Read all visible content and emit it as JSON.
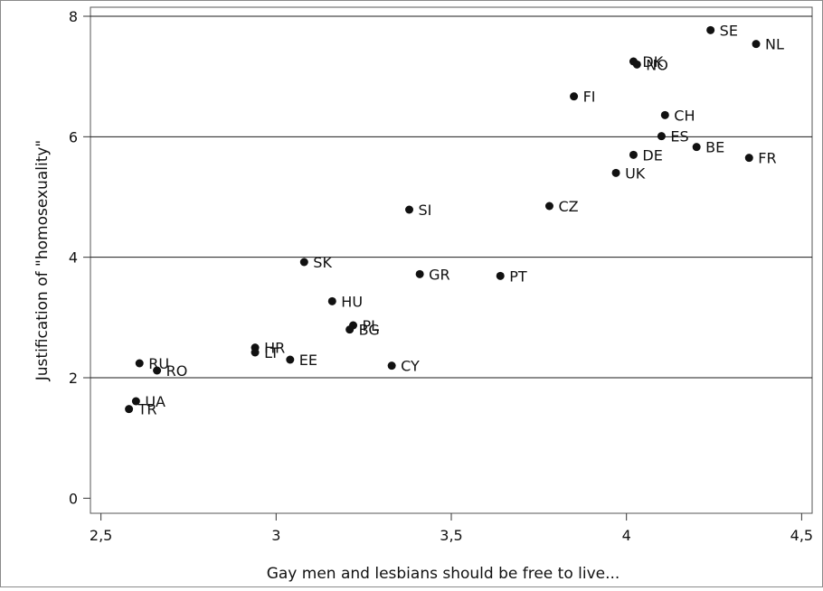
{
  "chart_data": {
    "type": "scatter",
    "xlabel": "Gay men and lesbians should be free to live...",
    "ylabel": "Justification of \"homosexuality\"",
    "xlim": [
      2.47,
      4.53
    ],
    "ylim": [
      -0.25,
      8.15
    ],
    "x_ticks": [
      {
        "value": 2.5,
        "label": "2,5"
      },
      {
        "value": 3,
        "label": "3"
      },
      {
        "value": 3.5,
        "label": "3,5"
      },
      {
        "value": 4,
        "label": "4"
      },
      {
        "value": 4.5,
        "label": "4,5"
      }
    ],
    "y_ticks": [
      {
        "value": 0,
        "label": "0"
      },
      {
        "value": 2,
        "label": "2"
      },
      {
        "value": 4,
        "label": "4"
      },
      {
        "value": 6,
        "label": "6"
      },
      {
        "value": 8,
        "label": "8"
      }
    ],
    "grid": {
      "horizontal": true,
      "vertical": false
    },
    "points": [
      {
        "label": "SE",
        "x": 4.24,
        "y": 7.77
      },
      {
        "label": "NL",
        "x": 4.37,
        "y": 7.54
      },
      {
        "label": "DK",
        "x": 4.02,
        "y": 7.25
      },
      {
        "label": "NO",
        "x": 4.03,
        "y": 7.2
      },
      {
        "label": "FI",
        "x": 3.85,
        "y": 6.67
      },
      {
        "label": "CH",
        "x": 4.11,
        "y": 6.36
      },
      {
        "label": "ES",
        "x": 4.1,
        "y": 6.01
      },
      {
        "label": "BE",
        "x": 4.2,
        "y": 5.83
      },
      {
        "label": "DE",
        "x": 4.02,
        "y": 5.7
      },
      {
        "label": "FR",
        "x": 4.35,
        "y": 5.65
      },
      {
        "label": "UK",
        "x": 3.97,
        "y": 5.4
      },
      {
        "label": "CZ",
        "x": 3.78,
        "y": 4.85
      },
      {
        "label": "SI",
        "x": 3.38,
        "y": 4.79
      },
      {
        "label": "SK",
        "x": 3.08,
        "y": 3.92
      },
      {
        "label": "GR",
        "x": 3.41,
        "y": 3.72
      },
      {
        "label": "PT",
        "x": 3.64,
        "y": 3.69
      },
      {
        "label": "HU",
        "x": 3.16,
        "y": 3.27
      },
      {
        "label": "PL",
        "x": 3.22,
        "y": 2.87
      },
      {
        "label": "BG",
        "x": 3.21,
        "y": 2.8
      },
      {
        "label": "HR",
        "x": 2.94,
        "y": 2.5
      },
      {
        "label": "LT",
        "x": 2.94,
        "y": 2.42
      },
      {
        "label": "EE",
        "x": 3.04,
        "y": 2.3
      },
      {
        "label": "RU",
        "x": 2.61,
        "y": 2.24
      },
      {
        "label": "CY",
        "x": 3.33,
        "y": 2.2
      },
      {
        "label": "RO",
        "x": 2.66,
        "y": 2.12
      },
      {
        "label": "UA",
        "x": 2.6,
        "y": 1.61
      },
      {
        "label": "TR",
        "x": 2.58,
        "y": 1.48
      }
    ]
  }
}
